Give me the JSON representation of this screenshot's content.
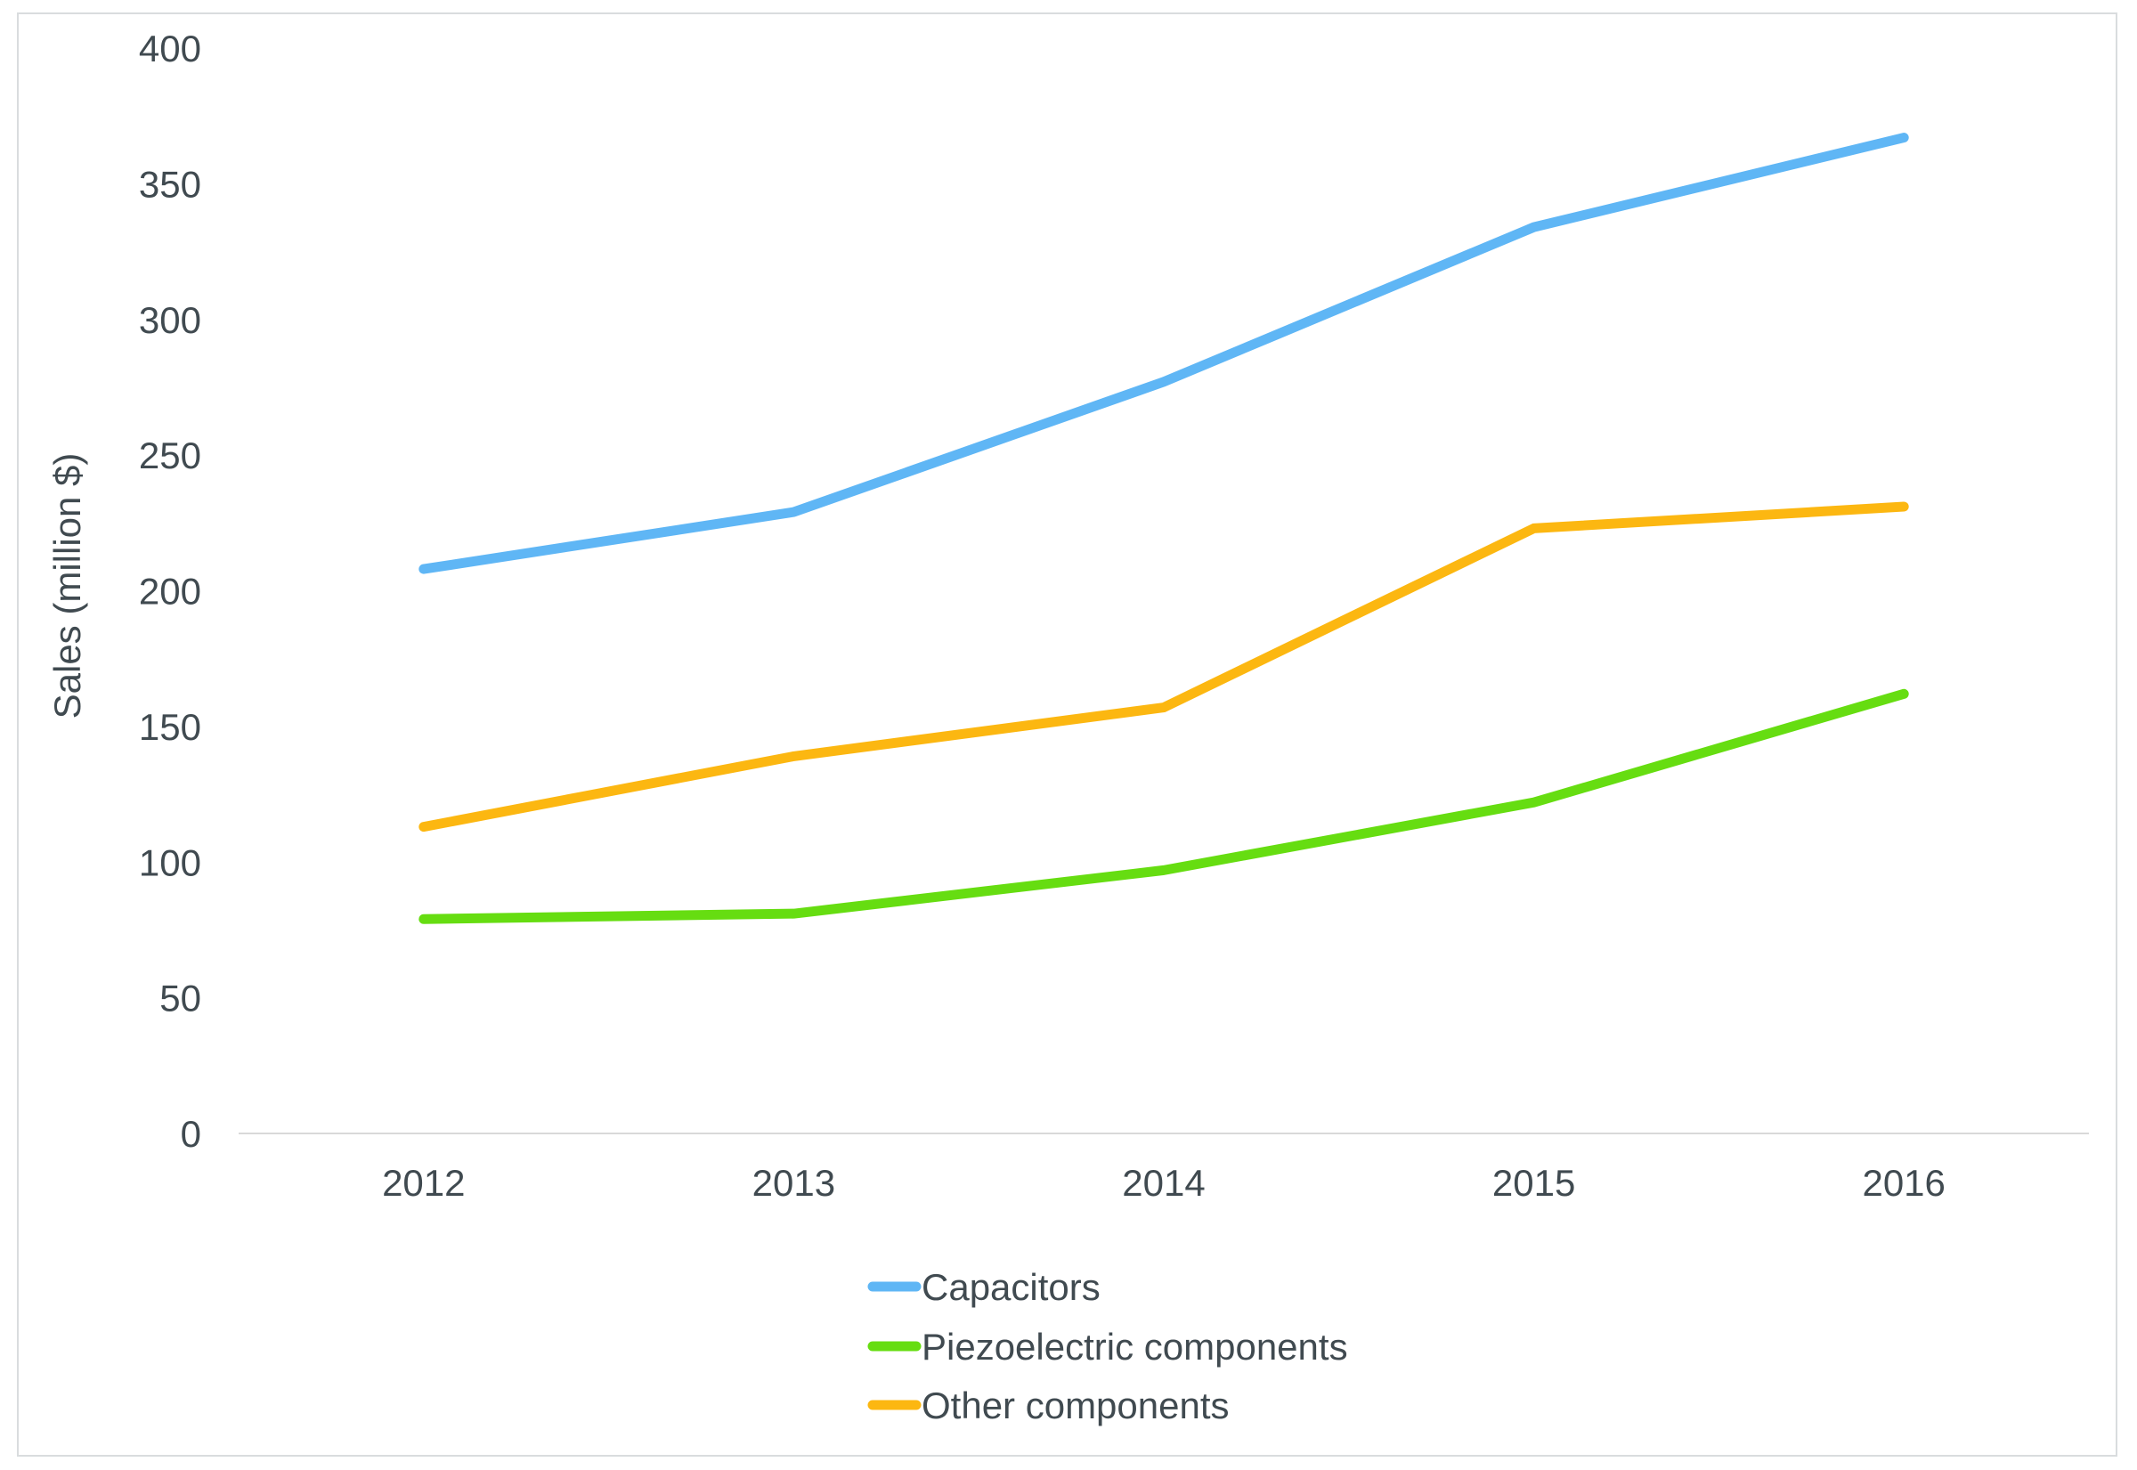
{
  "chart_data": {
    "type": "line",
    "title": "",
    "xlabel": "",
    "ylabel": "Sales (million $)",
    "ylim": [
      0,
      400
    ],
    "yticks": [
      0,
      50,
      100,
      150,
      200,
      250,
      300,
      350,
      400
    ],
    "categories": [
      "2012",
      "2013",
      "2014",
      "2015",
      "2016"
    ],
    "grid": false,
    "legend_position": "bottom",
    "series": [
      {
        "name": "Capacitors",
        "color": "#5fb6f5",
        "values": [
          208,
          229,
          277,
          334,
          367
        ]
      },
      {
        "name": "Piezoelectric components",
        "color": "#66dd11",
        "values": [
          79,
          81,
          97,
          122,
          162
        ]
      },
      {
        "name": "Other components",
        "color": "#fcb711",
        "values": [
          113,
          139,
          157,
          223,
          231
        ]
      }
    ]
  }
}
